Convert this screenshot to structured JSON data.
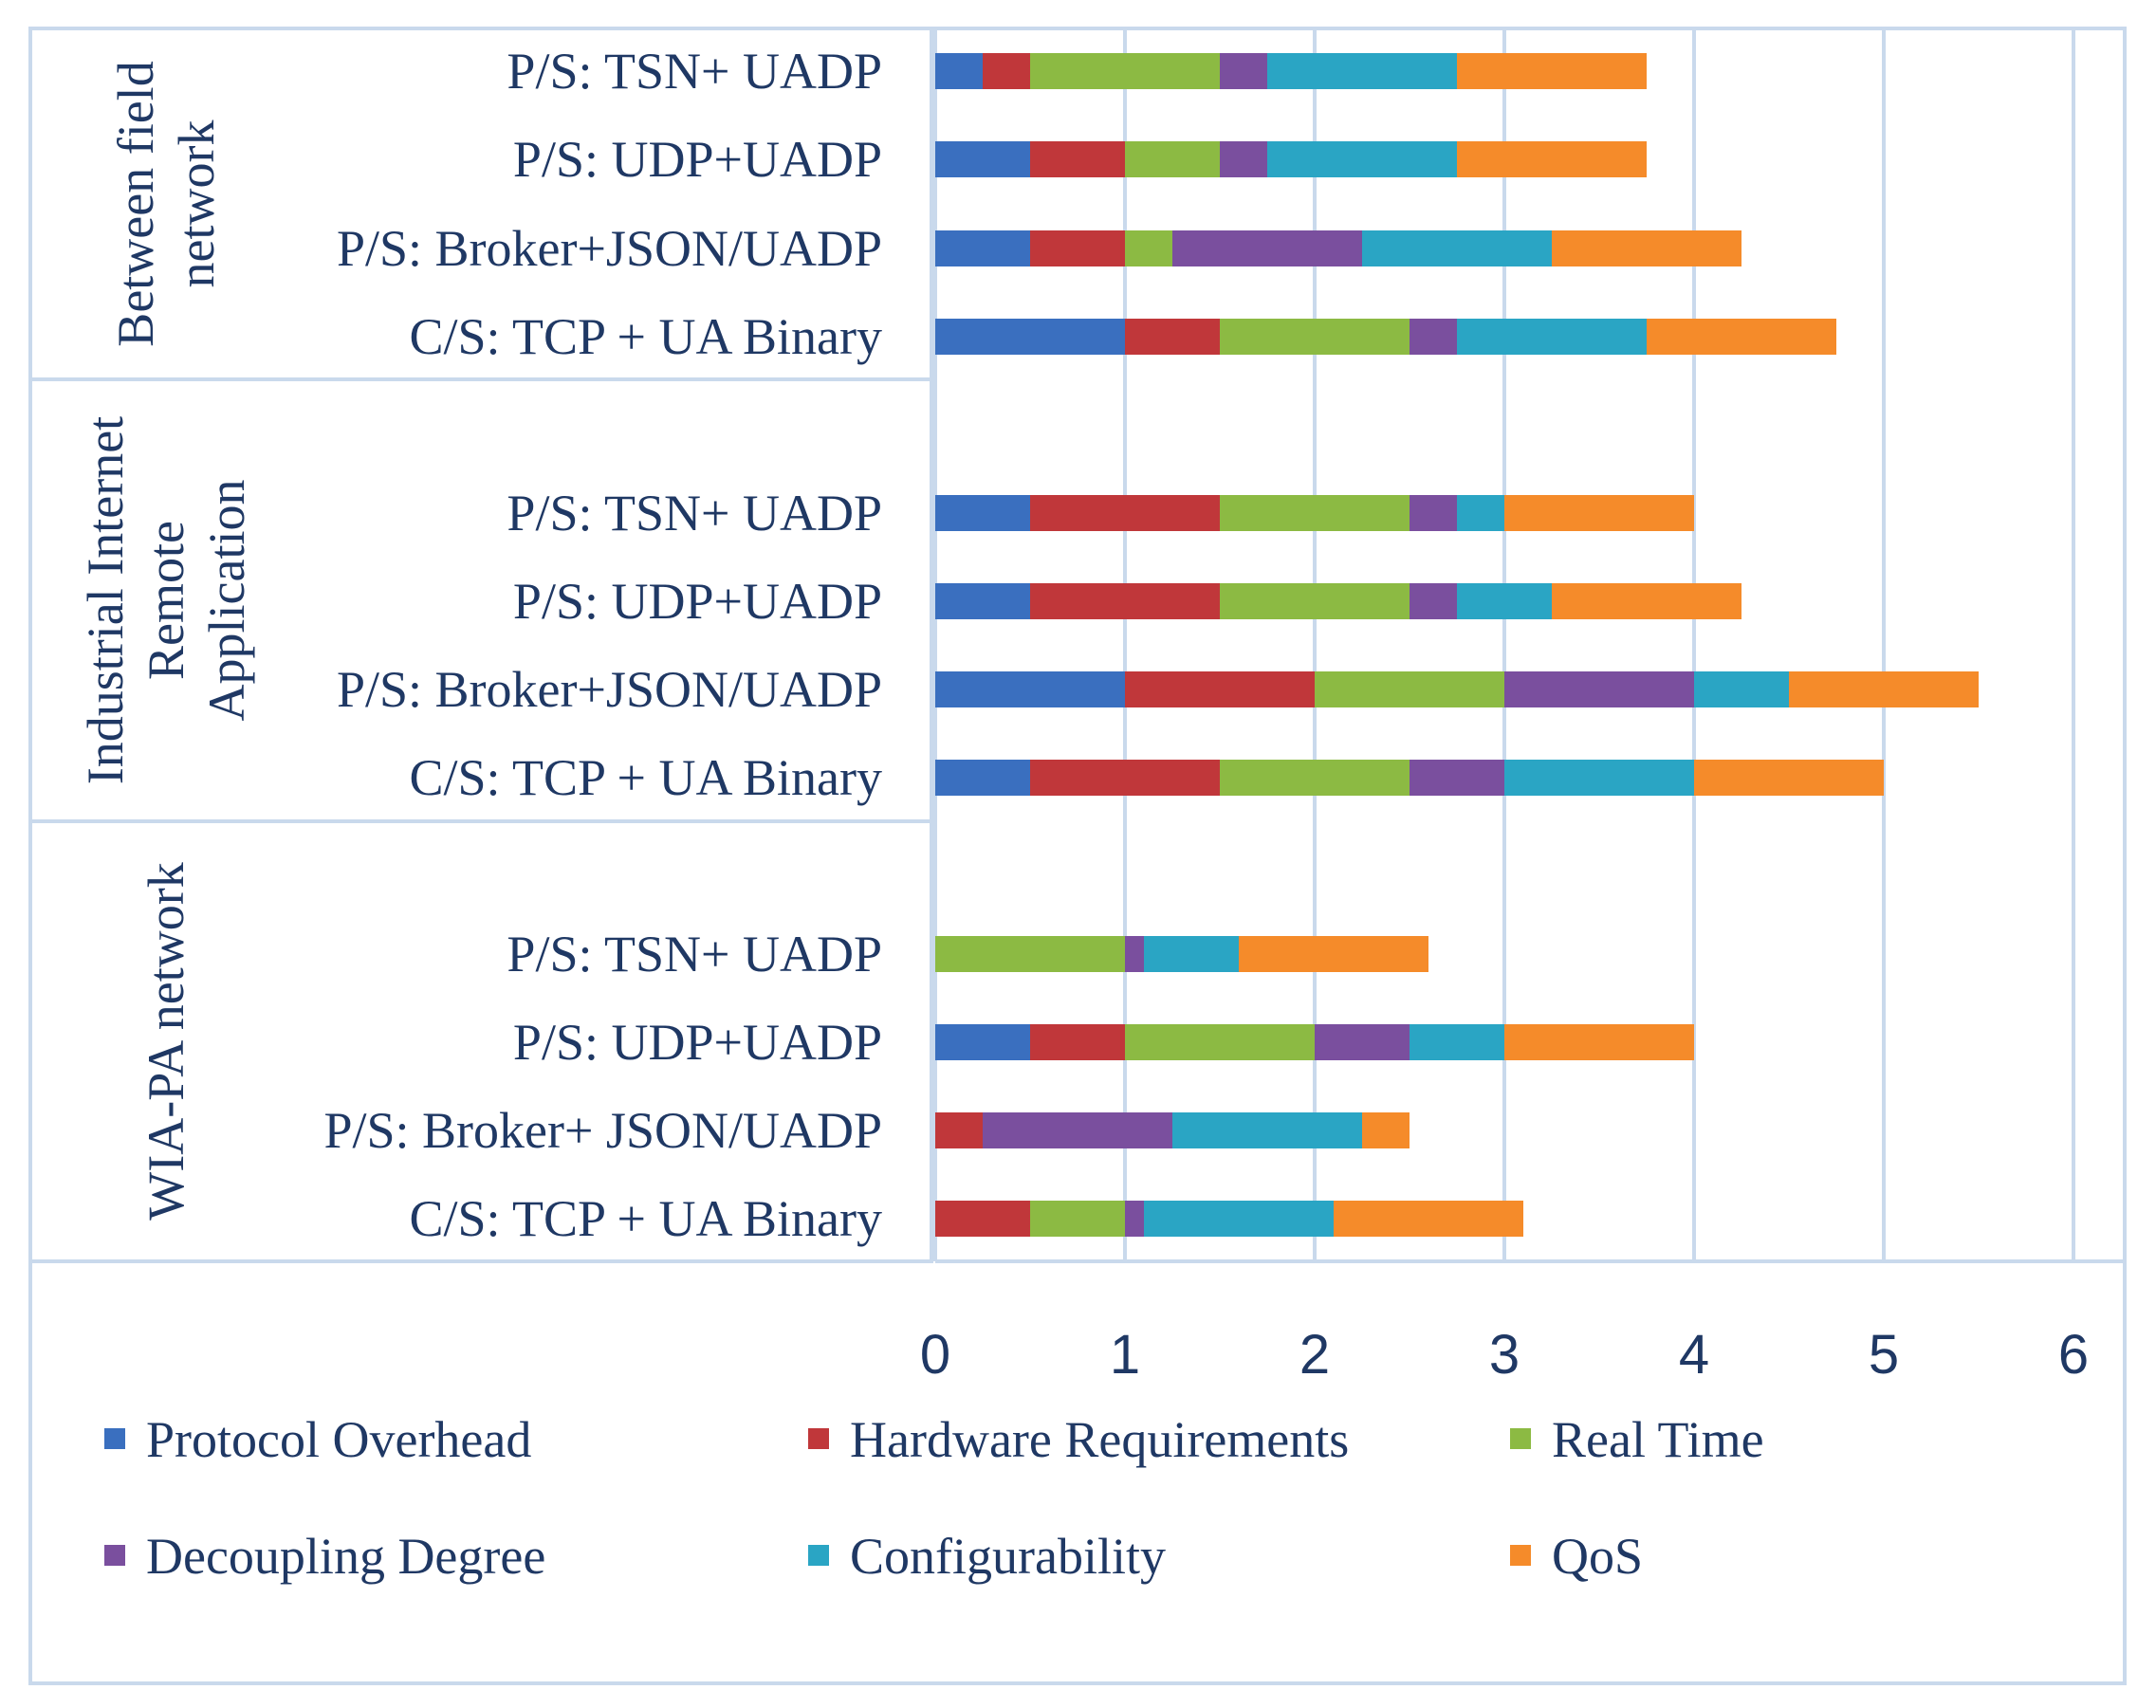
{
  "chart_data": {
    "type": "bar",
    "orientation": "horizontal",
    "stacked": true,
    "xlim": [
      0,
      6
    ],
    "xticks": [
      0,
      1,
      2,
      3,
      4,
      5,
      6
    ],
    "grid": true,
    "legend_position": "bottom",
    "groups": [
      {
        "name": "Between field network",
        "name_lines": [
          "Between field",
          "network"
        ],
        "categories": [
          "P/S: TSN+ UADP",
          "P/S: UDP+UADP",
          "P/S: Broker+JSON/UADP",
          "C/S: TCP + UA Binary"
        ]
      },
      {
        "name": "Industrial Internet Remote Application",
        "name_lines": [
          "Industrial Internet",
          "Remote",
          "Application"
        ],
        "categories": [
          "P/S: TSN+ UADP",
          "P/S: UDP+UADP",
          "P/S: Broker+JSON/UADP",
          "C/S: TCP + UA Binary"
        ]
      },
      {
        "name": "WIA-PA network",
        "name_lines": [
          "WIA-PA network"
        ],
        "categories": [
          "P/S: TSN+ UADP",
          "P/S: UDP+UADP",
          "P/S: Broker+ JSON/UADP",
          "C/S: TCP + UA Binary"
        ]
      }
    ],
    "series": [
      {
        "name": "Protocol Overhead",
        "color": "#3a6fbf",
        "values": [
          [
            0.25,
            0.5,
            0.5,
            1.0
          ],
          [
            0.5,
            0.5,
            1.0,
            0.5
          ],
          [
            0,
            0.5,
            0,
            0
          ]
        ]
      },
      {
        "name": "Hardware Requirements",
        "color": "#c0373a",
        "values": [
          [
            0.25,
            0.5,
            0.5,
            0.5
          ],
          [
            1.0,
            1.0,
            1.0,
            1.0
          ],
          [
            0,
            0.5,
            0.25,
            0.5
          ]
        ]
      },
      {
        "name": "Real Time",
        "color": "#8cba43",
        "values": [
          [
            1.0,
            0.5,
            0.25,
            1.0
          ],
          [
            1.0,
            1.0,
            1.0,
            1.0
          ],
          [
            1.0,
            1.0,
            0,
            0.5
          ]
        ]
      },
      {
        "name": "Decoupling Degree",
        "color": "#7a4f9e",
        "values": [
          [
            0.25,
            0.25,
            1.0,
            0.25
          ],
          [
            0.25,
            0.25,
            1.0,
            0.5
          ],
          [
            0.1,
            0.5,
            1.0,
            0.1
          ]
        ]
      },
      {
        "name": "Configurability",
        "color": "#2aa5c4",
        "values": [
          [
            1.0,
            1.0,
            1.0,
            1.0
          ],
          [
            0.25,
            0.5,
            0.5,
            1.0
          ],
          [
            0.5,
            0.5,
            1.0,
            1.0
          ]
        ]
      },
      {
        "name": "QoS",
        "color": "#f58b2a",
        "values": [
          [
            1.0,
            1.0,
            1.0,
            1.0
          ],
          [
            1.0,
            1.0,
            1.0,
            1.0
          ],
          [
            1.0,
            1.0,
            0.25,
            1.0
          ]
        ]
      }
    ]
  }
}
